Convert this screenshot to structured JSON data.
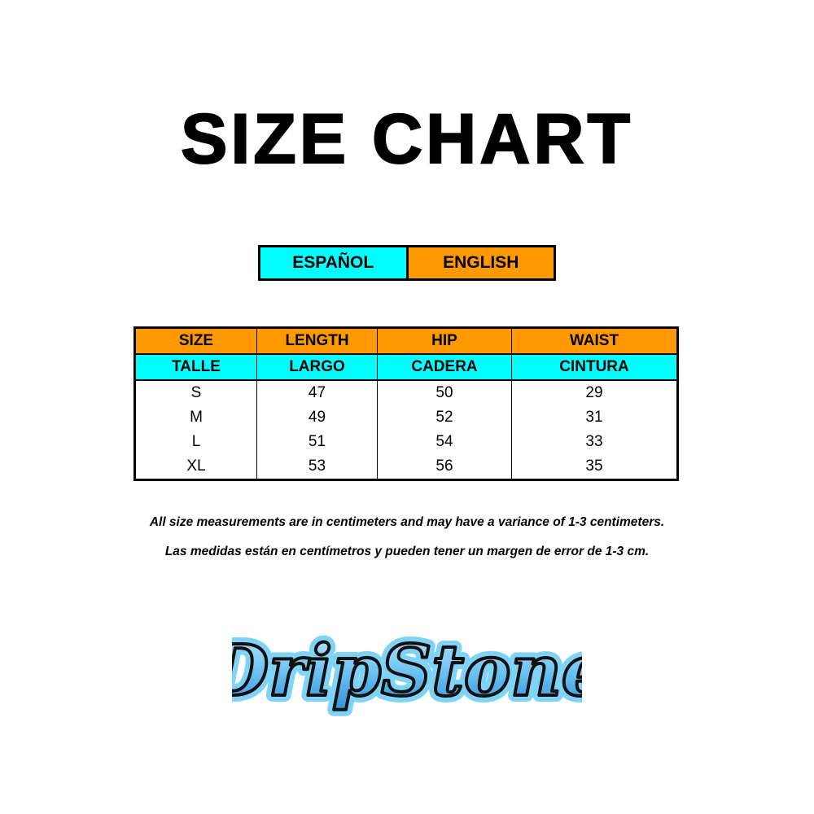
{
  "title": "SIZE CHART",
  "languages": {
    "spanish": "ESPAÑOL",
    "english": "ENGLISH"
  },
  "colors": {
    "orange": "#ff9900",
    "cyan": "#00ffff"
  },
  "table": {
    "header_en": [
      "SIZE",
      "LENGTH",
      "HIP",
      "WAIST"
    ],
    "header_es": [
      "TALLE",
      "LARGO",
      "CADERA",
      "CINTURA"
    ],
    "rows": [
      [
        "S",
        "47",
        "50",
        "29"
      ],
      [
        "M",
        "49",
        "52",
        "31"
      ],
      [
        "L",
        "51",
        "54",
        "33"
      ],
      [
        "XL",
        "53",
        "56",
        "35"
      ]
    ]
  },
  "notes": {
    "en": "All size measurements are in centimeters and may have a variance of 1-3 centimeters.",
    "es": "Las medidas están en centímetros y pueden tener un margen de error de 1-3 cm."
  },
  "logo": {
    "text": "DripStone"
  }
}
